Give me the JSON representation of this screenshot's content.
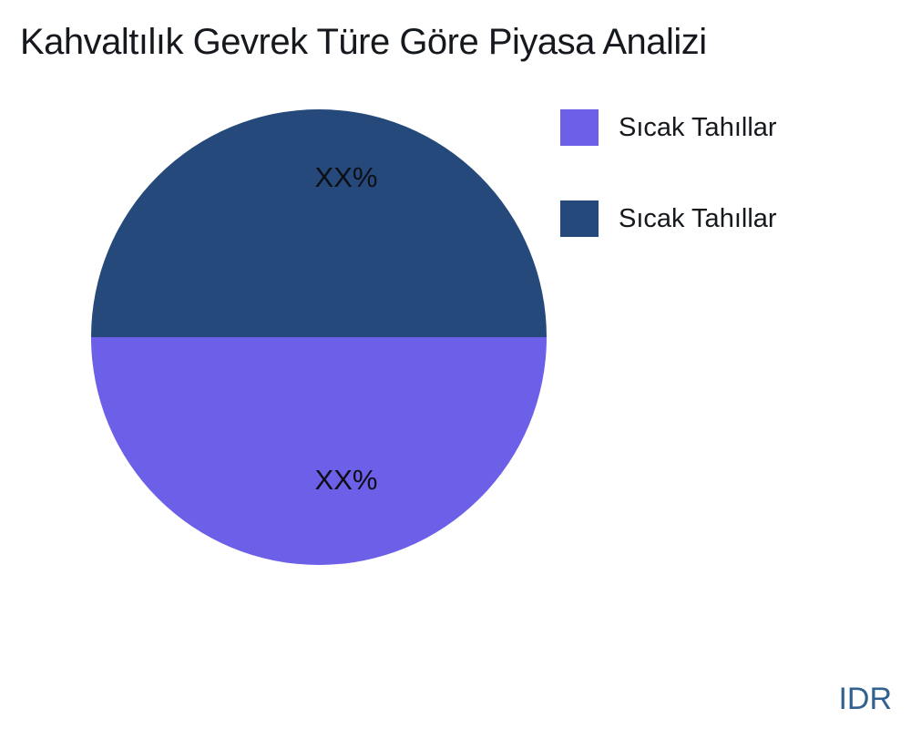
{
  "title": "Kahvaltılık Gevrek Türe Göre Piyasa Analizi",
  "watermark": "IDR",
  "colors": {
    "title_text": "#15181d",
    "legend_text": "#15181d",
    "slice_label_text": "#0e0e16",
    "watermark_text": "#30618F",
    "background": "#ffffff"
  },
  "chart_data": {
    "type": "pie",
    "title": "Kahvaltılık Gevrek Türe Göre Piyasa Analizi",
    "legend_position": "upper right",
    "start_orientation": "first slice fills bottom half, second slice fills top half",
    "slices": [
      {
        "label": "Sıcak Tahıllar",
        "value": 50,
        "display_pct": "XX%",
        "color": "#6C5FE8"
      },
      {
        "label": "Sıcak Tahıllar",
        "value": 50,
        "display_pct": "XX%",
        "color": "#24497A"
      }
    ]
  }
}
